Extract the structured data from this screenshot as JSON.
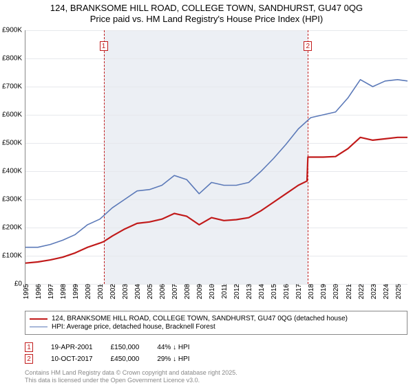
{
  "title": {
    "line1": "124, BRANKSOME HILL ROAD, COLLEGE TOWN, SANDHURST, GU47 0QG",
    "line2": "Price paid vs. HM Land Registry's House Price Index (HPI)",
    "fontsize": 13,
    "color": "#000000"
  },
  "chart": {
    "type": "line",
    "background_color": "#ffffff",
    "grid_color": "#e6e8ec",
    "axis_color": "#888888",
    "shaded_band_color": "#e9ecf2",
    "shaded_band": {
      "from_year": 2001.3,
      "to_year": 2017.77
    },
    "x": {
      "min": 1995,
      "max": 2025.8,
      "ticks": [
        1995,
        1996,
        1997,
        1998,
        1999,
        2000,
        2001,
        2002,
        2003,
        2004,
        2005,
        2006,
        2007,
        2008,
        2009,
        2010,
        2011,
        2012,
        2013,
        2014,
        2015,
        2016,
        2017,
        2018,
        2019,
        2020,
        2021,
        2022,
        2023,
        2024,
        2025
      ],
      "label_fontsize": 10,
      "label_rotation_deg": -90
    },
    "y": {
      "min": 0,
      "max": 900000,
      "ticks": [
        0,
        100000,
        200000,
        300000,
        400000,
        500000,
        600000,
        700000,
        800000,
        900000
      ],
      "tick_labels": [
        "£0",
        "£100K",
        "£200K",
        "£300K",
        "£400K",
        "£500K",
        "£600K",
        "£700K",
        "£800K",
        "£900K"
      ],
      "label_fontsize": 10
    },
    "series": [
      {
        "id": "price_paid",
        "label": "124, BRANKSOME HILL ROAD, COLLEGE TOWN, SANDHURST, GU47 0QG (detached house)",
        "color": "#c11a1a",
        "line_width": 2.2,
        "points": [
          [
            1995,
            74000
          ],
          [
            1996,
            78000
          ],
          [
            1997,
            85000
          ],
          [
            1998,
            95000
          ],
          [
            1999,
            110000
          ],
          [
            2000,
            130000
          ],
          [
            2001,
            145000
          ],
          [
            2001.3,
            150000
          ],
          [
            2002,
            170000
          ],
          [
            2003,
            195000
          ],
          [
            2004,
            215000
          ],
          [
            2005,
            220000
          ],
          [
            2006,
            230000
          ],
          [
            2007,
            250000
          ],
          [
            2008,
            240000
          ],
          [
            2009,
            210000
          ],
          [
            2010,
            235000
          ],
          [
            2011,
            225000
          ],
          [
            2012,
            228000
          ],
          [
            2013,
            235000
          ],
          [
            2014,
            260000
          ],
          [
            2015,
            290000
          ],
          [
            2016,
            320000
          ],
          [
            2017,
            350000
          ],
          [
            2017.7,
            365000
          ],
          [
            2017.77,
            450000
          ],
          [
            2018,
            450000
          ],
          [
            2019,
            450000
          ],
          [
            2020,
            452000
          ],
          [
            2021,
            480000
          ],
          [
            2022,
            520000
          ],
          [
            2023,
            510000
          ],
          [
            2024,
            515000
          ],
          [
            2025,
            520000
          ],
          [
            2025.8,
            520000
          ]
        ]
      },
      {
        "id": "hpi",
        "label": "HPI: Average price, detached house, Bracknell Forest",
        "color": "#5b79b8",
        "line_width": 1.6,
        "points": [
          [
            1995,
            130000
          ],
          [
            1996,
            130000
          ],
          [
            1997,
            140000
          ],
          [
            1998,
            155000
          ],
          [
            1999,
            175000
          ],
          [
            2000,
            210000
          ],
          [
            2001,
            230000
          ],
          [
            2002,
            270000
          ],
          [
            2003,
            300000
          ],
          [
            2004,
            330000
          ],
          [
            2005,
            335000
          ],
          [
            2006,
            350000
          ],
          [
            2007,
            385000
          ],
          [
            2008,
            370000
          ],
          [
            2009,
            320000
          ],
          [
            2010,
            360000
          ],
          [
            2011,
            350000
          ],
          [
            2012,
            350000
          ],
          [
            2013,
            360000
          ],
          [
            2014,
            400000
          ],
          [
            2015,
            445000
          ],
          [
            2016,
            495000
          ],
          [
            2017,
            550000
          ],
          [
            2018,
            590000
          ],
          [
            2019,
            600000
          ],
          [
            2020,
            610000
          ],
          [
            2021,
            660000
          ],
          [
            2022,
            725000
          ],
          [
            2023,
            700000
          ],
          [
            2024,
            720000
          ],
          [
            2025,
            725000
          ],
          [
            2025.8,
            720000
          ]
        ]
      }
    ],
    "sale_markers": [
      {
        "n": "1",
        "year": 2001.3,
        "color": "#c11a1a"
      },
      {
        "n": "2",
        "year": 2017.77,
        "color": "#c11a1a"
      }
    ]
  },
  "legend": {
    "border_color": "#888888",
    "fontsize": 10,
    "items": [
      {
        "color": "#c11a1a",
        "width": 2.2,
        "label": "124, BRANKSOME HILL ROAD, COLLEGE TOWN, SANDHURST, GU47 0QG (detached house)"
      },
      {
        "color": "#5b79b8",
        "width": 1.6,
        "label": "HPI: Average price, detached house, Bracknell Forest"
      }
    ]
  },
  "sales_table": {
    "fontsize": 10,
    "rows": [
      {
        "n": "1",
        "color": "#c11a1a",
        "date": "19-APR-2001",
        "price": "£150,000",
        "delta": "44% ↓ HPI"
      },
      {
        "n": "2",
        "color": "#c11a1a",
        "date": "10-OCT-2017",
        "price": "£450,000",
        "delta": "29% ↓ HPI"
      }
    ]
  },
  "footer": {
    "line1": "Contains HM Land Registry data © Crown copyright and database right 2025.",
    "line2": "This data is licensed under the Open Government Licence v3.0.",
    "color": "#888888",
    "fontsize": 9
  }
}
